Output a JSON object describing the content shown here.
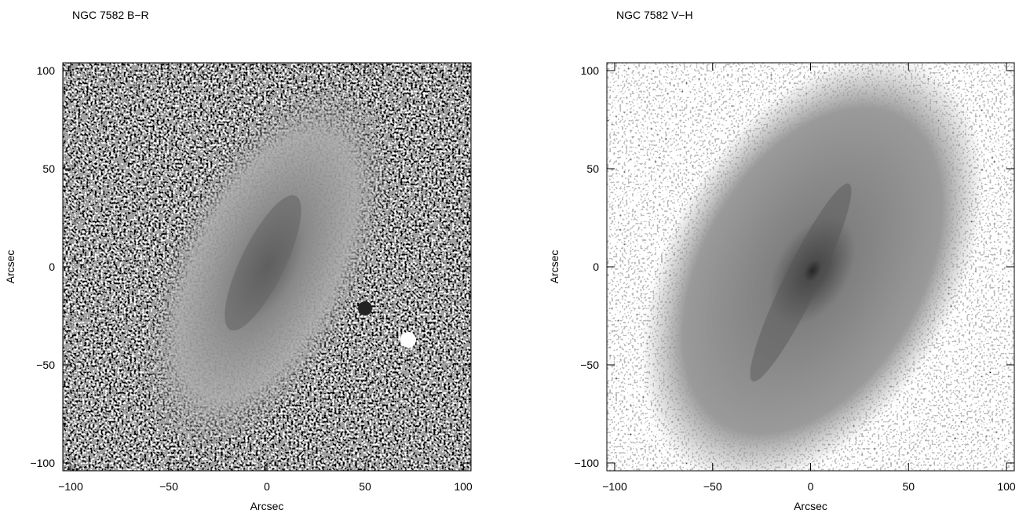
{
  "chart_data": [
    {
      "type": "image",
      "title": "NGC 7582 B−R",
      "x_label": "Arcsec",
      "y_label": "Arcsec",
      "xlim": [
        -104,
        104
      ],
      "ylim": [
        -104,
        104
      ],
      "xticks": [
        {
          "value": -100,
          "label": "−100"
        },
        {
          "value": -50,
          "label": "−50"
        },
        0,
        50,
        100
      ],
      "yticks": [
        {
          "value": -100,
          "label": "−100"
        },
        {
          "value": -50,
          "label": "−50"
        },
        0,
        50,
        100
      ]
    },
    {
      "type": "image",
      "title": "NGC 7582 V−H",
      "x_label": "Arcsec",
      "y_label": "Arcsec",
      "xlim": [
        -104,
        104
      ],
      "ylim": [
        -104,
        104
      ],
      "xticks": [
        {
          "value": -100,
          "label": "−100"
        },
        {
          "value": -50,
          "label": "−50"
        },
        0,
        50,
        100
      ],
      "yticks": [
        {
          "value": -100,
          "label": "−100"
        },
        {
          "value": -50,
          "label": "−50"
        },
        0,
        50,
        100
      ]
    }
  ]
}
